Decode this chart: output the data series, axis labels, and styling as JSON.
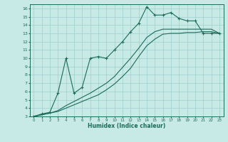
{
  "xlabel": "Humidex (Indice chaleur)",
  "bg_color": "#c8eae6",
  "grid_color": "#9ecece",
  "line_color": "#1a6b5a",
  "xlim": [
    -0.5,
    23.5
  ],
  "ylim": [
    3,
    16.5
  ],
  "xticks": [
    0,
    1,
    2,
    3,
    4,
    5,
    6,
    7,
    8,
    9,
    10,
    11,
    12,
    13,
    14,
    15,
    16,
    17,
    18,
    19,
    20,
    21,
    22,
    23
  ],
  "yticks": [
    3,
    4,
    5,
    6,
    7,
    8,
    9,
    10,
    11,
    12,
    13,
    14,
    15,
    16
  ],
  "series": [
    {
      "x": [
        0,
        1,
        2,
        3,
        4,
        5,
        6,
        7,
        8,
        9,
        10,
        11,
        12,
        13,
        14,
        15,
        16,
        17,
        18,
        19,
        20,
        21,
        22,
        23
      ],
      "y": [
        3.0,
        3.2,
        3.4,
        3.6,
        4.0,
        4.4,
        4.8,
        5.2,
        5.6,
        6.2,
        6.9,
        7.8,
        8.8,
        10.2,
        11.5,
        12.3,
        12.9,
        13.0,
        13.0,
        13.1,
        13.1,
        13.2,
        13.2,
        13.0
      ],
      "marker": false
    },
    {
      "x": [
        0,
        1,
        2,
        3,
        4,
        5,
        6,
        7,
        8,
        9,
        10,
        11,
        12,
        13,
        14,
        15,
        16,
        17,
        18,
        19,
        20,
        21,
        22,
        23
      ],
      "y": [
        3.0,
        3.2,
        3.4,
        3.7,
        4.3,
        4.8,
        5.3,
        5.8,
        6.4,
        7.0,
        7.8,
        8.9,
        10.0,
        11.2,
        12.5,
        13.2,
        13.5,
        13.5,
        13.5,
        13.5,
        13.5,
        13.5,
        13.5,
        13.0
      ],
      "marker": false
    },
    {
      "x": [
        0,
        1,
        2,
        3,
        4,
        5,
        6,
        7,
        8,
        9,
        10,
        11,
        12,
        13,
        14,
        15,
        16,
        17,
        18,
        19,
        20,
        21,
        22,
        23
      ],
      "y": [
        3.0,
        3.3,
        3.5,
        5.8,
        10.0,
        5.8,
        6.5,
        10.0,
        10.2,
        10.0,
        11.0,
        12.0,
        13.2,
        14.2,
        16.2,
        15.2,
        15.2,
        15.5,
        14.8,
        14.5,
        14.5,
        13.0,
        13.0,
        13.0
      ],
      "marker": true
    }
  ]
}
